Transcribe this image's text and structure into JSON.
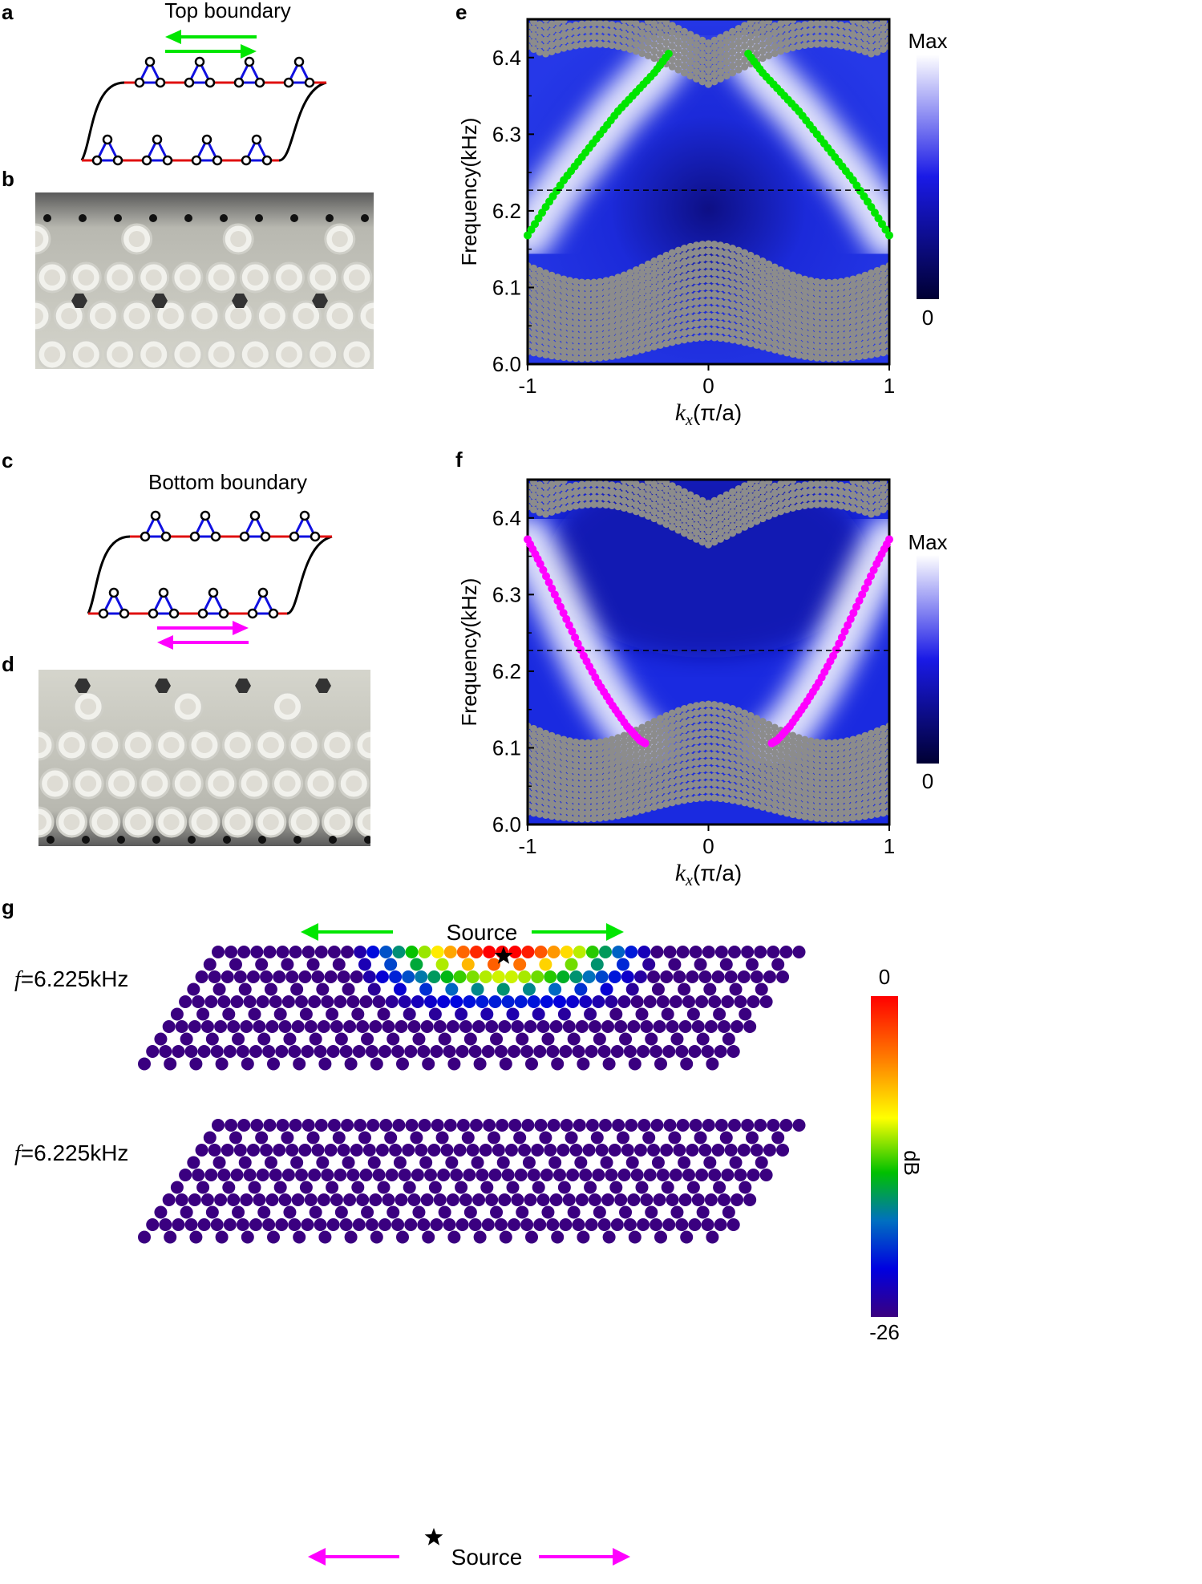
{
  "panels": {
    "a": {
      "letter": "a",
      "title": "Top boundary"
    },
    "b": {
      "letter": "b"
    },
    "c": {
      "letter": "c",
      "title": "Bottom boundary"
    },
    "d": {
      "letter": "d"
    },
    "e": {
      "letter": "e"
    },
    "f": {
      "letter": "f"
    },
    "g": {
      "letter": "g",
      "top_label_f": "f",
      "top_label_val": "=6.225kHz",
      "bottom_label_f": "f",
      "bottom_label_val": "=6.225kHz",
      "source_label_top": "Source",
      "source_label_bottom": "Source",
      "colorbar": {
        "max": "0",
        "min": "-26",
        "unit": "dB"
      }
    }
  },
  "colors": {
    "green_edge": "#00e600",
    "magenta_edge": "#ff00ff",
    "bulk_grey": "#8c8c8c",
    "bond_blue": "#1010e0",
    "bond_red": "#e01010",
    "lattice_bg": "#4b0082"
  },
  "chart_data": [
    {
      "type": "scatter",
      "id": "e",
      "ylabel": "Frequency(kHz)",
      "xlabel_var": "k",
      "xlabel_sub": "x",
      "xlabel_unit": "(π/a)",
      "xlim": [
        -1,
        1
      ],
      "ylim": [
        6.0,
        6.45
      ],
      "xticks": [
        "-1",
        "0",
        "1"
      ],
      "yticks": [
        "6.0",
        "6.1",
        "6.2",
        "6.3",
        "6.4"
      ],
      "dashed_line_y": 6.227,
      "colorbar": {
        "max": "Max",
        "min": "0"
      },
      "edge_series_left": {
        "color": "green",
        "k": [
          -1.0,
          -0.9,
          -0.8,
          -0.7,
          -0.6,
          -0.5,
          -0.4,
          -0.3,
          -0.22
        ],
        "f": [
          6.168,
          6.205,
          6.24,
          6.27,
          6.3,
          6.33,
          6.355,
          6.38,
          6.405
        ]
      },
      "edge_series_right": {
        "color": "green",
        "k": [
          0.22,
          0.3,
          0.4,
          0.5,
          0.6,
          0.7,
          0.8,
          0.9,
          1.0
        ],
        "f": [
          6.405,
          6.38,
          6.355,
          6.33,
          6.3,
          6.27,
          6.24,
          6.205,
          6.168
        ]
      }
    },
    {
      "type": "scatter",
      "id": "f",
      "ylabel": "Frequency(kHz)",
      "xlabel_var": "k",
      "xlabel_sub": "x",
      "xlabel_unit": "(π/a)",
      "xlim": [
        -1,
        1
      ],
      "ylim": [
        6.0,
        6.45
      ],
      "xticks": [
        "-1",
        "0",
        "1"
      ],
      "yticks": [
        "6.0",
        "6.1",
        "6.2",
        "6.3",
        "6.4"
      ],
      "dashed_line_y": 6.227,
      "colorbar": {
        "max": "Max",
        "min": "0"
      },
      "edge_series_left": {
        "color": "magenta",
        "k": [
          -1.0,
          -0.93,
          -0.85,
          -0.77,
          -0.69,
          -0.61,
          -0.53,
          -0.45,
          -0.38,
          -0.35
        ],
        "f": [
          6.372,
          6.34,
          6.3,
          6.26,
          6.22,
          6.185,
          6.155,
          6.128,
          6.11,
          6.106
        ]
      },
      "edge_series_right": {
        "color": "magenta",
        "k": [
          0.35,
          0.38,
          0.45,
          0.53,
          0.61,
          0.69,
          0.77,
          0.85,
          0.93,
          1.0
        ],
        "f": [
          6.106,
          6.11,
          6.128,
          6.155,
          6.185,
          6.22,
          6.26,
          6.3,
          6.34,
          6.372
        ]
      }
    }
  ]
}
